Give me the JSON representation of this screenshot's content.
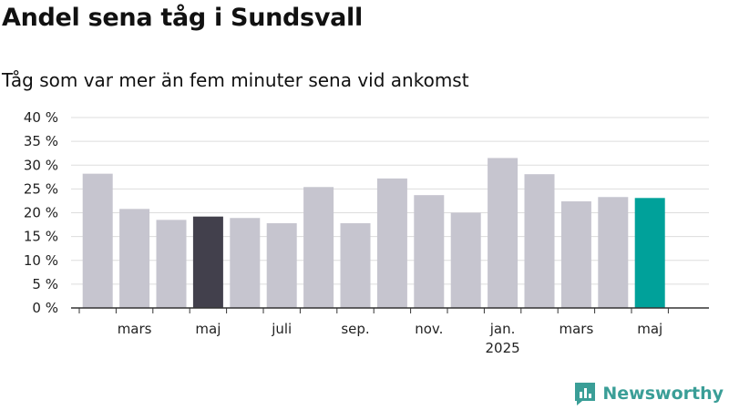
{
  "title": "Andel sena tåg i Sundsvall",
  "subtitle": "Tåg som var mer än fem minuter sena vid ankomst",
  "brand": "Newsworthy",
  "colors": {
    "bar_default": "#c6c5cf",
    "bar_highlight_dark": "#42404c",
    "bar_highlight_teal": "#00a19a",
    "grid": "#dddddd",
    "axis": "#333333",
    "brand": "#3a9e97"
  },
  "chart_data": {
    "type": "bar",
    "title": "Andel sena tåg i Sundsvall",
    "subtitle": "Tåg som var mer än fem minuter sena vid ankomst",
    "categories": [
      "2024-02",
      "2024-03",
      "2024-04",
      "2024-05",
      "2024-06",
      "2024-07",
      "2024-08",
      "2024-09",
      "2024-10",
      "2024-11",
      "2024-12",
      "2025-01",
      "2025-02",
      "2025-03",
      "2025-04",
      "2025-05"
    ],
    "values": [
      28.2,
      20.8,
      18.5,
      19.2,
      18.9,
      17.8,
      25.4,
      17.8,
      27.2,
      23.7,
      20.0,
      31.5,
      28.1,
      22.4,
      23.3,
      23.1
    ],
    "bar_colors": [
      "default",
      "default",
      "default",
      "dark",
      "default",
      "default",
      "default",
      "default",
      "default",
      "default",
      "default",
      "default",
      "default",
      "default",
      "default",
      "teal"
    ],
    "ylim": [
      0,
      40
    ],
    "yticks": [
      0,
      5,
      10,
      15,
      20,
      25,
      30,
      35,
      40
    ],
    "ytick_labels": [
      "0 %",
      "5 %",
      "10 %",
      "15 %",
      "20 %",
      "25 %",
      "30 %",
      "35 %",
      "40 %"
    ],
    "xtick_labels": [
      {
        "index": 1,
        "label": "mars"
      },
      {
        "index": 3,
        "label": "maj"
      },
      {
        "index": 5,
        "label": "juli"
      },
      {
        "index": 7,
        "label": "sep."
      },
      {
        "index": 9,
        "label": "nov."
      },
      {
        "index": 11,
        "label": "jan.",
        "sublabel": "2025"
      },
      {
        "index": 13,
        "label": "mars"
      },
      {
        "index": 15,
        "label": "maj"
      }
    ],
    "grid": true,
    "legend": "none"
  }
}
